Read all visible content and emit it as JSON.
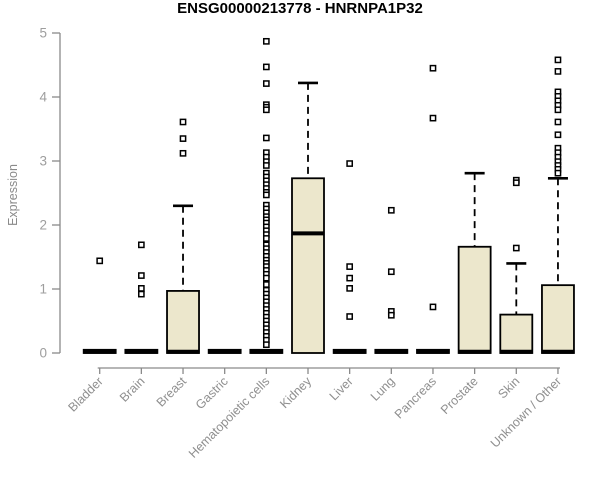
{
  "chart_data": {
    "type": "boxplot",
    "title": "ENSG00000213778 - HNRNPA1P32",
    "xlabel": "",
    "ylabel": "Expression",
    "ylim": [
      0,
      5
    ],
    "yticks": [
      0,
      1,
      2,
      3,
      4,
      5
    ],
    "grid": false,
    "legend": "none",
    "categories": [
      "Bladder",
      "Brain",
      "Breast",
      "Gastric",
      "Hematopoietic cells",
      "Kidney",
      "Liver",
      "Lung",
      "Pancreas",
      "Prostate",
      "Skin",
      "Unknown / Other"
    ],
    "boxes": [
      {
        "category": "Bladder",
        "q1": 0,
        "median": 0.02,
        "q3": 0.05,
        "whisker_low": 0,
        "whisker_high": 0.05,
        "outliers": [
          1.44
        ]
      },
      {
        "category": "Brain",
        "q1": 0,
        "median": 0.02,
        "q3": 0.05,
        "whisker_low": 0,
        "whisker_high": 0.05,
        "outliers": [
          1.69,
          1.21,
          1.01,
          0.92
        ]
      },
      {
        "category": "Breast",
        "q1": 0,
        "median": 0.02,
        "q3": 0.97,
        "whisker_low": 0,
        "whisker_high": 2.3,
        "outliers": [
          3.61,
          3.35,
          3.12
        ]
      },
      {
        "category": "Gastric",
        "q1": 0,
        "median": 0.02,
        "q3": 0.05,
        "whisker_low": 0,
        "whisker_high": 0.05,
        "outliers": []
      },
      {
        "category": "Hematopoietic cells",
        "q1": 0,
        "median": 0.02,
        "q3": 0.05,
        "whisker_low": 0,
        "whisker_high": 0.05,
        "outliers": [
          4.87,
          4.47,
          4.21,
          3.88,
          3.84,
          3.8,
          3.36,
          3.13,
          3.06,
          2.99,
          2.93,
          2.81,
          2.75,
          2.69,
          2.63,
          2.57,
          2.51,
          2.47,
          2.31,
          2.25,
          2.19,
          2.13,
          2.08,
          2.03,
          1.97,
          1.91,
          1.85,
          1.79,
          1.69,
          1.63,
          1.57,
          1.51,
          1.45,
          1.4,
          1.35,
          1.29,
          1.23,
          1.17,
          1.07,
          0.98,
          0.92,
          0.86,
          0.8,
          0.74,
          0.68,
          0.62,
          0.56,
          0.5,
          0.44,
          0.38,
          0.32,
          0.26,
          0.2,
          0.13
        ]
      },
      {
        "category": "Kidney",
        "q1": 0,
        "median": 1.87,
        "q3": 2.73,
        "whisker_low": 0,
        "whisker_high": 4.22,
        "outliers": []
      },
      {
        "category": "Liver",
        "q1": 0,
        "median": 0.02,
        "q3": 0.05,
        "whisker_low": 0,
        "whisker_high": 0.05,
        "outliers": [
          2.96,
          1.35,
          1.17,
          1.01,
          0.57
        ]
      },
      {
        "category": "Lung",
        "q1": 0,
        "median": 0.02,
        "q3": 0.05,
        "whisker_low": 0,
        "whisker_high": 0.05,
        "outliers": [
          2.23,
          1.27,
          0.65,
          0.59
        ]
      },
      {
        "category": "Pancreas",
        "q1": 0,
        "median": 0.02,
        "q3": 0.05,
        "whisker_low": 0,
        "whisker_high": 0.05,
        "outliers": [
          4.45,
          3.67,
          0.72
        ]
      },
      {
        "category": "Prostate",
        "q1": 0,
        "median": 0.02,
        "q3": 1.66,
        "whisker_low": 0,
        "whisker_high": 2.81,
        "outliers": []
      },
      {
        "category": "Skin",
        "q1": 0,
        "median": 0.02,
        "q3": 0.6,
        "whisker_low": 0,
        "whisker_high": 1.4,
        "outliers": [
          2.7,
          2.66,
          1.64
        ]
      },
      {
        "category": "Unknown / Other",
        "q1": 0,
        "median": 0.02,
        "q3": 1.06,
        "whisker_low": 0,
        "whisker_high": 2.73,
        "outliers": [
          4.58,
          4.4,
          4.08,
          4.01,
          3.94,
          3.87,
          3.8,
          3.61,
          3.41,
          3.2,
          3.13,
          3.06,
          2.99,
          2.93,
          2.87,
          2.81
        ]
      }
    ],
    "colors": {
      "box_fill": "#ece7cc",
      "box_border": "#000000",
      "median": "#000000",
      "whisker": "#000000",
      "outlier_fill": "#ffffff",
      "outlier_border": "#000000",
      "axis": "#8a8a8a",
      "tick_label": "#9e9e9e",
      "category_label": "#8f8f8f",
      "title": "#000000",
      "background": "#ffffff"
    }
  }
}
